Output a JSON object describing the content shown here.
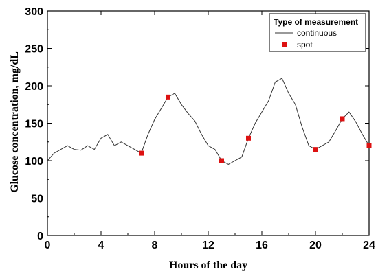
{
  "chart_data": {
    "type": "line",
    "xlabel": "Hours of the day",
    "ylabel": "Glucose concentration, mg/dL",
    "xlim": [
      0,
      24
    ],
    "ylim": [
      0,
      300
    ],
    "x_ticks": [
      0,
      4,
      8,
      12,
      16,
      20,
      24
    ],
    "y_ticks": [
      0,
      50,
      100,
      150,
      200,
      250,
      300
    ],
    "grid": false,
    "legend": {
      "title": "Type of measurement",
      "placement": "top-right",
      "entries": [
        {
          "label": "continuous",
          "marker": "line",
          "color": "#333333"
        },
        {
          "label": "spot",
          "marker": "square",
          "color": "#dd1111"
        }
      ]
    },
    "series": [
      {
        "name": "continuous",
        "style": "line",
        "color": "#333333",
        "x": [
          0,
          0.5,
          1,
          1.5,
          2,
          2.5,
          3,
          3.5,
          4,
          4.5,
          5,
          5.5,
          6,
          6.5,
          7,
          7.5,
          8,
          8.5,
          9,
          9.5,
          10,
          10.5,
          11,
          11.5,
          12,
          12.5,
          13,
          13.5,
          14,
          14.5,
          15,
          15.5,
          16,
          16.5,
          17,
          17.5,
          18,
          18.5,
          19,
          19.5,
          20,
          20.5,
          21,
          21.5,
          22,
          22.5,
          23,
          23.5,
          24
        ],
        "y": [
          100,
          110,
          115,
          120,
          115,
          114,
          120,
          115,
          130,
          135,
          120,
          125,
          120,
          115,
          110,
          135,
          155,
          170,
          185,
          190,
          175,
          163,
          153,
          135,
          120,
          115,
          100,
          95,
          100,
          105,
          130,
          150,
          165,
          180,
          205,
          210,
          190,
          175,
          145,
          120,
          115,
          120,
          125,
          140,
          156,
          165,
          152,
          135,
          120
        ]
      },
      {
        "name": "spot",
        "style": "marker",
        "color": "#dd1111",
        "x": [
          7,
          9,
          13,
          15,
          20,
          22,
          24
        ],
        "y": [
          110,
          185,
          100,
          130,
          115,
          156,
          120
        ]
      }
    ]
  }
}
